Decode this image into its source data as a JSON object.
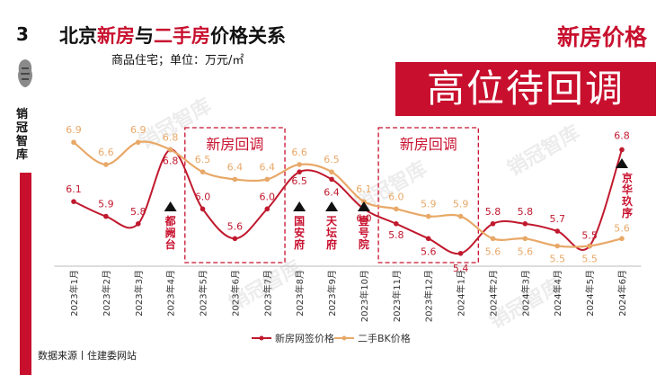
{
  "page_number": "3",
  "brand": "销冠智库",
  "title": {
    "prefix": "北京",
    "highlight1": "新房",
    "middle": "与",
    "highlight2": "二手房",
    "suffix": "价格关系"
  },
  "subtitle": "商品住宅；单位：万元/㎡",
  "headline_top": "新房价格",
  "headline_banner": "高位待回调",
  "source": "数据来源丨住建委网站",
  "watermark": "销冠智库",
  "colors": {
    "accent": "#c8102e",
    "new_house": "#c0192e",
    "second_hand": "#e8a868"
  },
  "chart_data": {
    "type": "line",
    "categories": [
      "2023年1月",
      "2023年2月",
      "2023年3月",
      "2023年4月",
      "2023年5月",
      "2023年6月",
      "2023年7月",
      "2023年8月",
      "2023年9月",
      "2023年10月",
      "2023年11月",
      "2023年12月",
      "2024年1月",
      "2024年2月",
      "2024年3月",
      "2024年4月",
      "2024年5月",
      "2024年6月"
    ],
    "series": [
      {
        "name": "新房网签价格",
        "color": "#c0192e",
        "values": [
          6.1,
          5.9,
          5.8,
          6.8,
          6.0,
          5.6,
          6.0,
          6.5,
          6.4,
          6.0,
          5.8,
          5.6,
          5.4,
          5.8,
          5.8,
          5.7,
          5.5,
          6.8
        ]
      },
      {
        "name": "二手BK价格",
        "color": "#e8a868",
        "values": [
          6.9,
          6.6,
          6.9,
          6.8,
          6.5,
          6.4,
          6.4,
          6.6,
          6.5,
          6.1,
          6.0,
          5.9,
          5.9,
          5.6,
          5.6,
          5.5,
          5.5,
          5.6
        ]
      }
    ],
    "highlight_boxes": [
      {
        "label": "新房回调",
        "from": "2023年5月",
        "to": "2023年7月"
      },
      {
        "label": "新房回调",
        "from": "2023年11月",
        "to": "2024年1月"
      }
    ],
    "annotations": [
      {
        "category": "2023年4月",
        "text": "都阙台"
      },
      {
        "category": "2023年8月",
        "text": "国安府"
      },
      {
        "category": "2023年9月",
        "text": "天坛府"
      },
      {
        "category": "2023年10月",
        "text": "壹号院"
      },
      {
        "category": "2024年6月",
        "text": "京华玖序"
      }
    ],
    "legend_position": "bottom",
    "grid": false
  }
}
